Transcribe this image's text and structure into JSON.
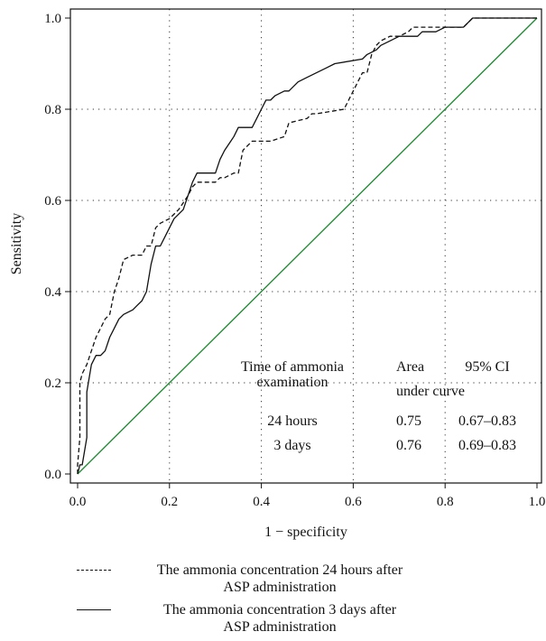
{
  "chart_data": {
    "type": "line",
    "xlabel": "1 − specificity",
    "ylabel": "Sensitivity",
    "xlim": [
      0,
      1
    ],
    "ylim": [
      0,
      1
    ],
    "x_ticks": [
      "0.0",
      "0.2",
      "0.4",
      "0.6",
      "0.8",
      "1.0"
    ],
    "y_ticks": [
      "0.0",
      "0.2",
      "0.4",
      "0.6",
      "0.8",
      "1.0"
    ],
    "grid": true,
    "reference_line": {
      "x": [
        0,
        1
      ],
      "y": [
        0,
        1
      ],
      "color": "#1a8a2e"
    },
    "series": [
      {
        "name": "The ammonia concentration 24 hours after ASP administration",
        "style": "dashed",
        "x": [
          0.0,
          0.0,
          0.005,
          0.005,
          0.01,
          0.02,
          0.03,
          0.04,
          0.05,
          0.06,
          0.07,
          0.08,
          0.09,
          0.1,
          0.12,
          0.14,
          0.15,
          0.16,
          0.17,
          0.18,
          0.2,
          0.22,
          0.24,
          0.25,
          0.26,
          0.3,
          0.31,
          0.32,
          0.34,
          0.35,
          0.36,
          0.37,
          0.38,
          0.4,
          0.42,
          0.45,
          0.46,
          0.5,
          0.51,
          0.52,
          0.58,
          0.59,
          0.6,
          0.61,
          0.62,
          0.63,
          0.64,
          0.65,
          0.66,
          0.68,
          0.7,
          0.72,
          0.73,
          0.8,
          0.84,
          0.85,
          0.86,
          1.0
        ],
        "y": [
          0.0,
          0.02,
          0.08,
          0.2,
          0.22,
          0.24,
          0.27,
          0.3,
          0.32,
          0.34,
          0.35,
          0.4,
          0.43,
          0.47,
          0.48,
          0.48,
          0.5,
          0.5,
          0.54,
          0.55,
          0.56,
          0.58,
          0.61,
          0.63,
          0.64,
          0.64,
          0.65,
          0.65,
          0.66,
          0.66,
          0.71,
          0.72,
          0.73,
          0.73,
          0.73,
          0.74,
          0.77,
          0.78,
          0.79,
          0.79,
          0.8,
          0.82,
          0.84,
          0.86,
          0.88,
          0.88,
          0.92,
          0.94,
          0.95,
          0.96,
          0.96,
          0.97,
          0.98,
          0.98,
          0.98,
          0.99,
          1.0,
          1.0
        ]
      },
      {
        "name": "The ammonia concentration 3 days after ASP administration",
        "style": "solid",
        "x": [
          0.0,
          0.005,
          0.01,
          0.02,
          0.02,
          0.03,
          0.04,
          0.05,
          0.06,
          0.07,
          0.08,
          0.09,
          0.1,
          0.12,
          0.13,
          0.14,
          0.15,
          0.16,
          0.17,
          0.18,
          0.19,
          0.2,
          0.21,
          0.23,
          0.25,
          0.26,
          0.28,
          0.3,
          0.31,
          0.32,
          0.34,
          0.35,
          0.38,
          0.4,
          0.41,
          0.42,
          0.43,
          0.45,
          0.46,
          0.48,
          0.5,
          0.52,
          0.54,
          0.56,
          0.62,
          0.63,
          0.65,
          0.66,
          0.68,
          0.7,
          0.74,
          0.75,
          0.78,
          0.8,
          0.84,
          0.86,
          1.0
        ],
        "y": [
          0.0,
          0.02,
          0.02,
          0.08,
          0.18,
          0.24,
          0.26,
          0.26,
          0.27,
          0.3,
          0.32,
          0.34,
          0.35,
          0.36,
          0.37,
          0.38,
          0.4,
          0.46,
          0.5,
          0.5,
          0.52,
          0.54,
          0.56,
          0.58,
          0.64,
          0.66,
          0.66,
          0.66,
          0.69,
          0.71,
          0.74,
          0.76,
          0.76,
          0.8,
          0.82,
          0.82,
          0.83,
          0.84,
          0.84,
          0.86,
          0.87,
          0.88,
          0.89,
          0.9,
          0.91,
          0.92,
          0.93,
          0.94,
          0.95,
          0.96,
          0.96,
          0.97,
          0.97,
          0.98,
          0.98,
          1.0,
          1.0
        ]
      }
    ],
    "table": {
      "header": {
        "time_line1": "Time of ammonia",
        "time_line2": "examination",
        "area_line1": "Area",
        "area_line2": "under curve",
        "ci": "95% CI"
      },
      "rows": [
        {
          "time": "24 hours",
          "area": "0.75",
          "ci": "0.67–0.83"
        },
        {
          "time": "3 days",
          "area": "0.76",
          "ci": "0.69–0.83"
        }
      ]
    },
    "legend": {
      "placement": "bottom",
      "items": [
        {
          "line1": "The ammonia concentration 24 hours after",
          "line2": "ASP administration",
          "style": "dashed"
        },
        {
          "line1": "The ammonia concentration 3 days after",
          "line2": "ASP administration",
          "style": "solid"
        }
      ]
    }
  }
}
